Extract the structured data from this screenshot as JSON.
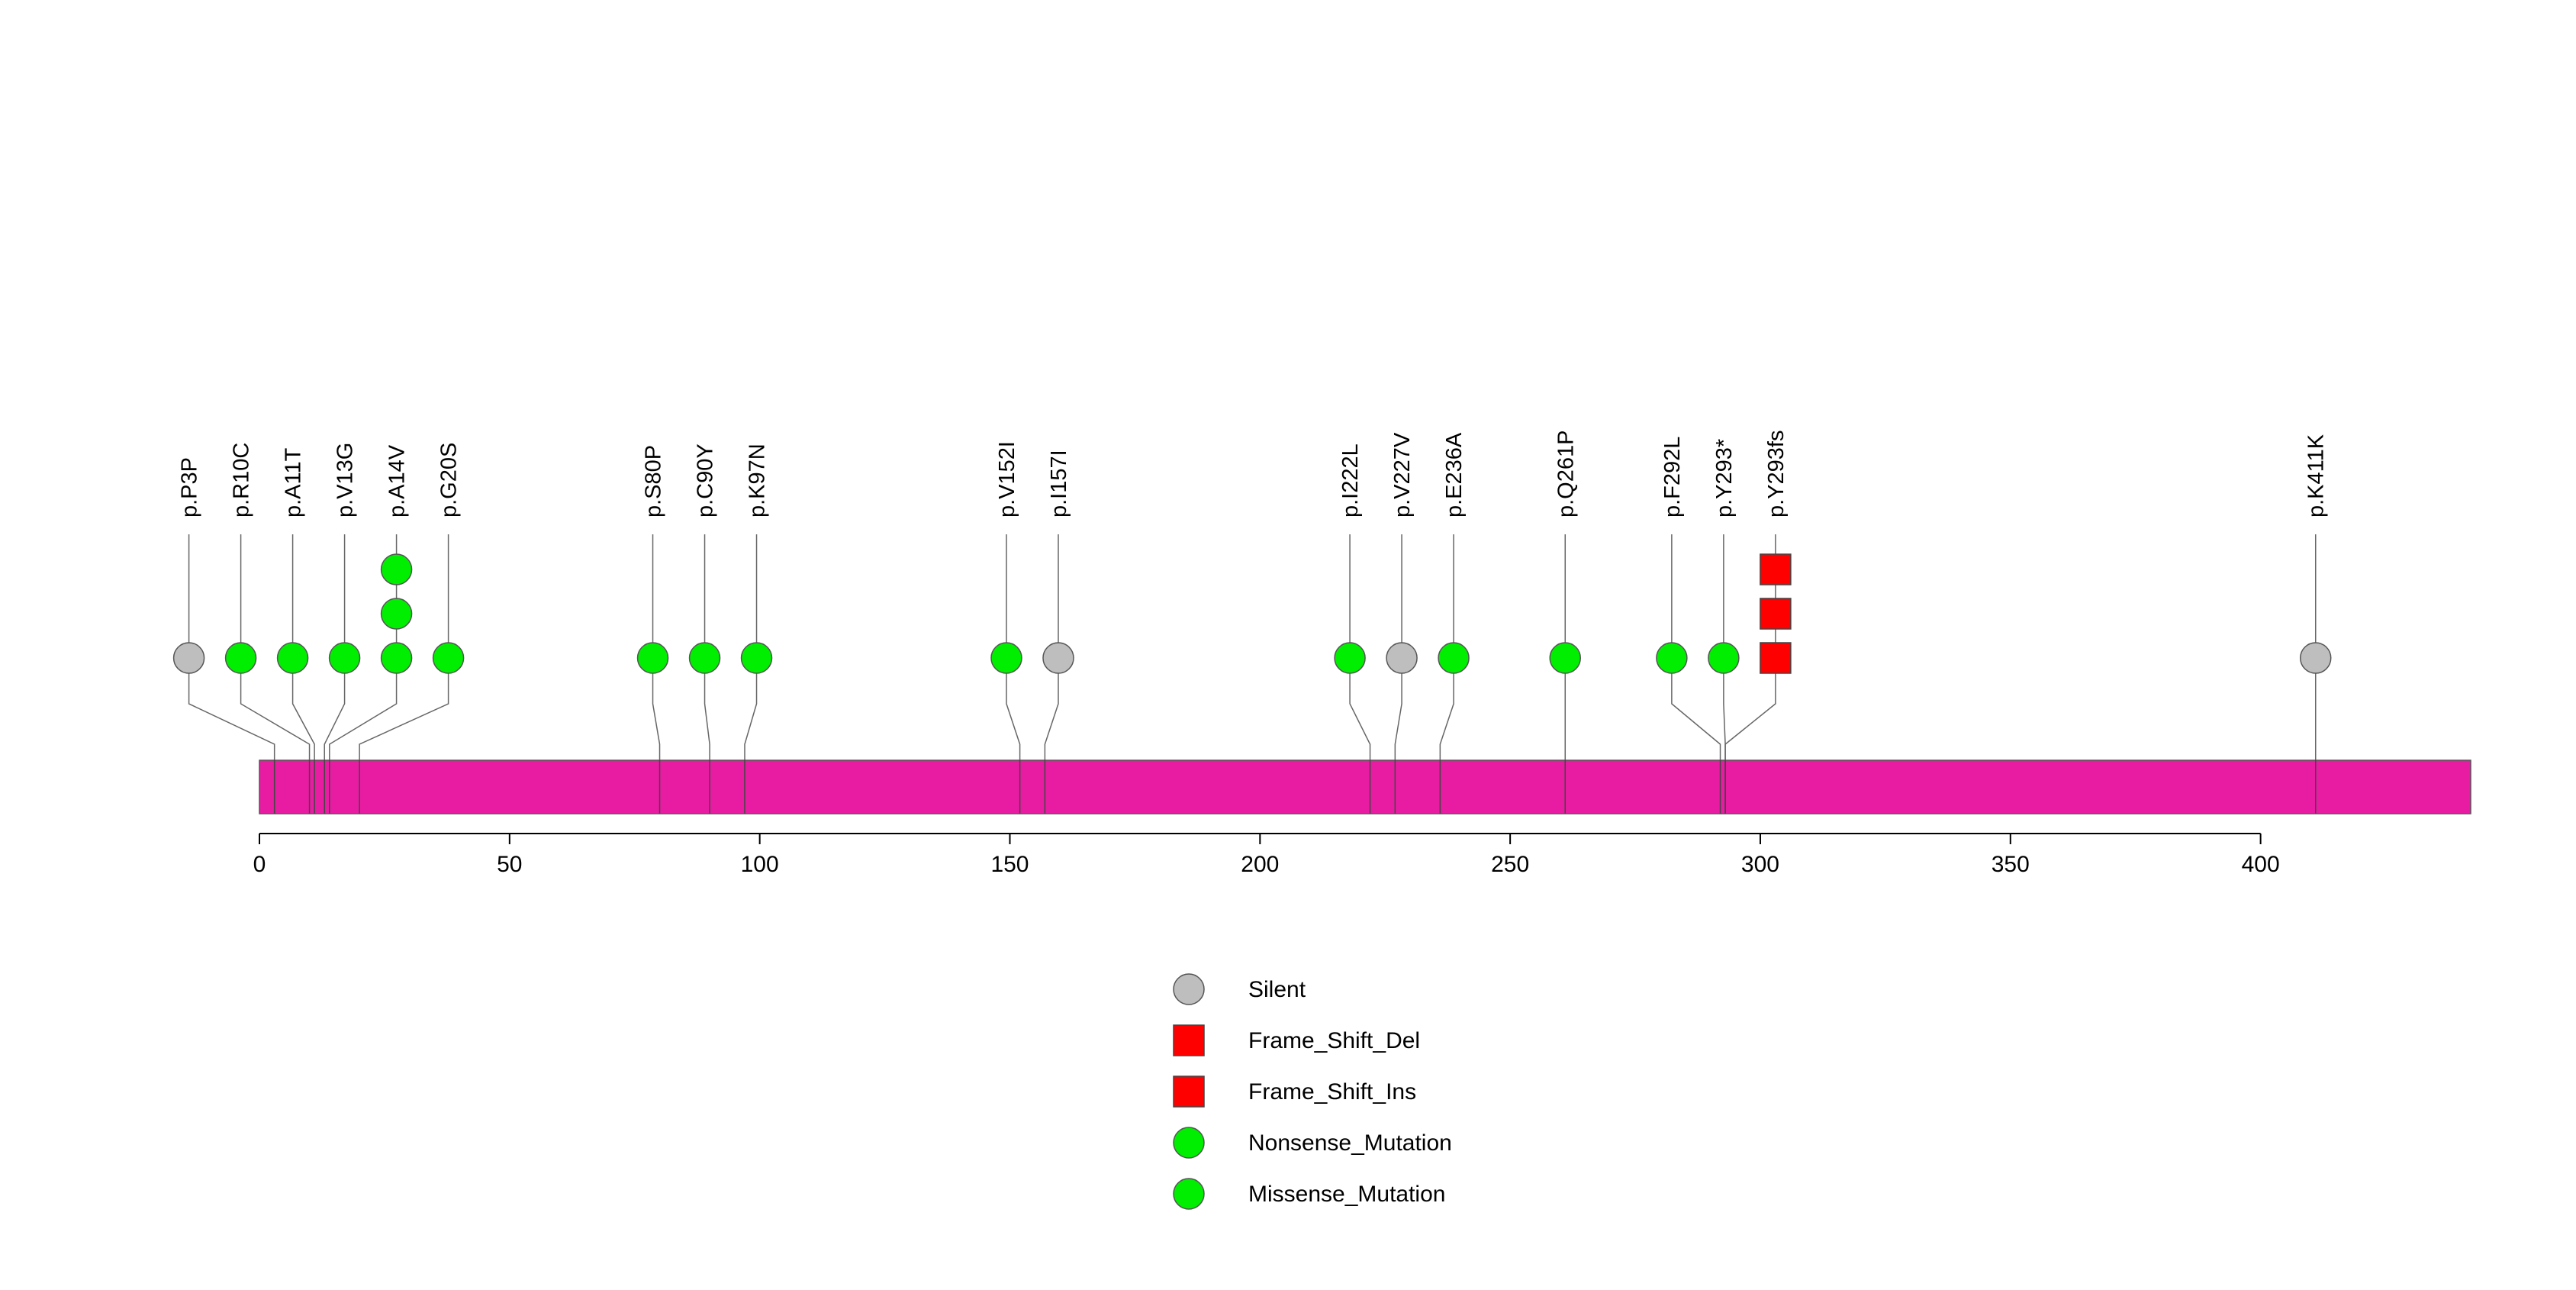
{
  "chart_data": {
    "type": "lollipop",
    "title": "",
    "xlabel": "",
    "ylabel": "",
    "xlim": [
      0,
      442
    ],
    "x_ticks": [
      0,
      50,
      100,
      150,
      200,
      250,
      300,
      350,
      400
    ],
    "protein_bar_color": "#E81CA2",
    "mutations": [
      {
        "label": "p.P3P",
        "position": 3,
        "type": "Silent",
        "count": 1
      },
      {
        "label": "p.R10C",
        "position": 10,
        "type": "Missense_Mutation",
        "count": 1
      },
      {
        "label": "p.A11T",
        "position": 11,
        "type": "Missense_Mutation",
        "count": 1
      },
      {
        "label": "p.V13G",
        "position": 13,
        "type": "Missense_Mutation",
        "count": 1
      },
      {
        "label": "p.A14V",
        "position": 14,
        "type": "Missense_Mutation",
        "count": 3
      },
      {
        "label": "p.G20S",
        "position": 20,
        "type": "Missense_Mutation",
        "count": 1
      },
      {
        "label": "p.S80P",
        "position": 80,
        "type": "Missense_Mutation",
        "count": 1
      },
      {
        "label": "p.C90Y",
        "position": 90,
        "type": "Missense_Mutation",
        "count": 1
      },
      {
        "label": "p.K97N",
        "position": 97,
        "type": "Missense_Mutation",
        "count": 1
      },
      {
        "label": "p.V152I",
        "position": 152,
        "type": "Missense_Mutation",
        "count": 1
      },
      {
        "label": "p.I157I",
        "position": 157,
        "type": "Silent",
        "count": 1
      },
      {
        "label": "p.I222L",
        "position": 222,
        "type": "Missense_Mutation",
        "count": 1
      },
      {
        "label": "p.V227V",
        "position": 227,
        "type": "Silent",
        "count": 1
      },
      {
        "label": "p.E236A",
        "position": 236,
        "type": "Missense_Mutation",
        "count": 1
      },
      {
        "label": "p.Q261P",
        "position": 261,
        "type": "Missense_Mutation",
        "count": 1
      },
      {
        "label": "p.F292L",
        "position": 292,
        "type": "Missense_Mutation",
        "count": 1
      },
      {
        "label": "p.Y293*",
        "position": 293,
        "type": "Nonsense_Mutation",
        "count": 1
      },
      {
        "label": "p.Y293fs",
        "position": 293,
        "type": "Frame_Shift",
        "count": 3
      },
      {
        "label": "p.K411K",
        "position": 411,
        "type": "Silent",
        "count": 1
      }
    ],
    "legend": [
      {
        "label": "Silent",
        "shape": "circle",
        "color": "#BEBEBE"
      },
      {
        "label": "Frame_Shift_Del",
        "shape": "square",
        "color": "#FF0000"
      },
      {
        "label": "Frame_Shift_Ins",
        "shape": "square",
        "color": "#FF0000"
      },
      {
        "label": "Nonsense_Mutation",
        "shape": "circle",
        "color": "#00EE00"
      },
      {
        "label": "Missense_Mutation",
        "shape": "circle",
        "color": "#00EE00"
      }
    ],
    "type_colors": {
      "Silent": "#BEBEBE",
      "Missense_Mutation": "#00EE00",
      "Nonsense_Mutation": "#00EE00",
      "Frame_Shift": "#FF0000"
    }
  }
}
